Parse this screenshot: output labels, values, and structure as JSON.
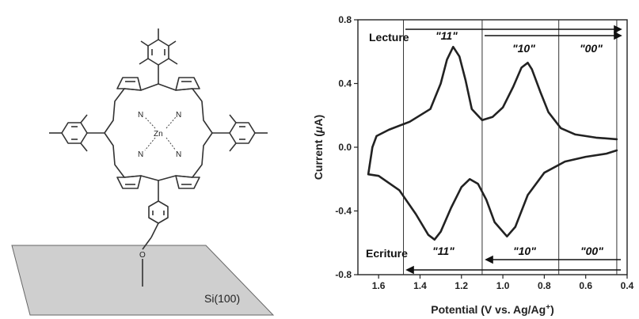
{
  "molecule": {
    "metal_label": "Zn",
    "nitrogen_label": "N",
    "oxygen_label": "O",
    "substrate_label": "Si(100)"
  },
  "chart_data": {
    "type": "line",
    "xlabel_text": "Potential (V vs. Ag/Ag",
    "xlabel_sup": "+",
    "xlabel_close": ")",
    "ylabel_text": "Current (",
    "ylabel_mu": "μ",
    "ylabel_close": "A)",
    "xlim": [
      1.7,
      0.4
    ],
    "ylim": [
      -0.8,
      0.8
    ],
    "xticks": [
      1.6,
      1.4,
      1.2,
      1.0,
      0.8,
      0.6,
      0.4
    ],
    "xtick_labels": [
      "1.6",
      "1.4",
      "1.2",
      "1.0",
      "0.8",
      "0.6",
      "0.4"
    ],
    "yticks": [
      0.8,
      0.4,
      0.0,
      -0.4,
      -0.8
    ],
    "ytick_labels": [
      "0.8",
      "0.4",
      "0.0",
      "-0.4",
      "-0.8"
    ],
    "vertical_lines_x": [
      1.48,
      1.1,
      0.73,
      0.45
    ],
    "read_label": "Lecture",
    "write_label": "Ecriture",
    "state_labels": {
      "s11": "\"11\"",
      "s10": "\"10\"",
      "s00": "\"00\""
    },
    "series": [
      {
        "values": [
          [
            0.45,
            0.05
          ],
          [
            0.55,
            0.06
          ],
          [
            0.65,
            0.08
          ],
          [
            0.72,
            0.12
          ],
          [
            0.78,
            0.22
          ],
          [
            0.82,
            0.35
          ],
          [
            0.86,
            0.49
          ],
          [
            0.88,
            0.53
          ],
          [
            0.91,
            0.5
          ],
          [
            0.95,
            0.38
          ],
          [
            1.0,
            0.25
          ],
          [
            1.05,
            0.19
          ],
          [
            1.1,
            0.17
          ],
          [
            1.15,
            0.24
          ],
          [
            1.18,
            0.42
          ],
          [
            1.21,
            0.57
          ],
          [
            1.24,
            0.63
          ],
          [
            1.27,
            0.55
          ],
          [
            1.3,
            0.4
          ],
          [
            1.35,
            0.24
          ],
          [
            1.45,
            0.16
          ],
          [
            1.55,
            0.11
          ],
          [
            1.61,
            0.07
          ],
          [
            1.63,
            0.0
          ],
          [
            1.65,
            -0.17
          ],
          [
            1.6,
            -0.18
          ],
          [
            1.5,
            -0.27
          ],
          [
            1.42,
            -0.42
          ],
          [
            1.36,
            -0.55
          ],
          [
            1.33,
            -0.58
          ],
          [
            1.3,
            -0.53
          ],
          [
            1.25,
            -0.38
          ],
          [
            1.2,
            -0.25
          ],
          [
            1.16,
            -0.2
          ],
          [
            1.12,
            -0.23
          ],
          [
            1.08,
            -0.33
          ],
          [
            1.04,
            -0.47
          ],
          [
            0.98,
            -0.56
          ],
          [
            0.94,
            -0.5
          ],
          [
            0.88,
            -0.3
          ],
          [
            0.8,
            -0.16
          ],
          [
            0.7,
            -0.09
          ],
          [
            0.6,
            -0.06
          ],
          [
            0.5,
            -0.04
          ],
          [
            0.45,
            -0.02
          ]
        ]
      }
    ]
  }
}
